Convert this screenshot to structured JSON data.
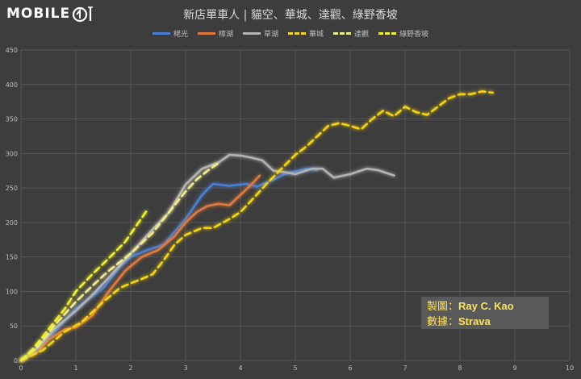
{
  "header": {
    "logo_text": "MOBILE",
    "title": "新店單車人 | 貓空、華城、達觀、綠野香坡"
  },
  "credit": {
    "author_label": "製圖：",
    "author": "Ray C. Kao",
    "source_label": "數據：",
    "source": "Strava"
  },
  "chart_data": {
    "type": "line",
    "title": "新店單車人 | 貓空、華城、達觀、綠野香坡",
    "xlim": [
      0,
      10
    ],
    "ylim": [
      0,
      450
    ],
    "x_ticks": [
      "0",
      "1",
      "2",
      "3",
      "4",
      "5",
      "6",
      "7",
      "8",
      "9",
      "10"
    ],
    "y_ticks": [
      "0",
      "50",
      "100",
      "150",
      "200",
      "250",
      "300",
      "350",
      "400",
      "450"
    ],
    "grid": true,
    "legend_position": "top",
    "series": [
      {
        "name": "栳光",
        "color": "#4a7fd4",
        "dashed": false,
        "x": [
          0,
          0.3,
          0.6,
          1.0,
          1.5,
          1.8,
          2.0,
          2.3,
          2.6,
          3.0,
          3.3,
          3.5,
          3.8,
          4.1,
          4.3,
          4.6,
          4.8,
          5.0,
          5.2,
          5.4
        ],
        "y": [
          0,
          15,
          40,
          75,
          105,
          135,
          150,
          160,
          168,
          205,
          240,
          256,
          253,
          256,
          252,
          262,
          270,
          274,
          278,
          276
        ]
      },
      {
        "name": "樟湖",
        "color": "#e07a3c",
        "dashed": false,
        "x": [
          0,
          0.3,
          0.5,
          0.8,
          1.0,
          1.3,
          1.6,
          1.9,
          2.2,
          2.5,
          2.8,
          3.0,
          3.2,
          3.4,
          3.6,
          3.8,
          4.0,
          4.2,
          4.35
        ],
        "y": [
          0,
          12,
          30,
          45,
          48,
          65,
          100,
          130,
          150,
          160,
          180,
          200,
          215,
          224,
          227,
          225,
          240,
          255,
          268
        ]
      },
      {
        "name": "草湖",
        "color": "#b3b3b3",
        "dashed": false,
        "x": [
          0,
          0.3,
          0.6,
          1.0,
          1.3,
          1.6,
          2.0,
          2.4,
          2.7,
          3.0,
          3.3,
          3.6,
          3.8,
          4.0,
          4.2,
          4.4,
          4.6,
          4.8,
          5.0,
          5.3,
          5.5,
          5.7,
          6.0,
          6.3,
          6.5,
          6.8
        ],
        "y": [
          0,
          18,
          45,
          72,
          95,
          120,
          155,
          190,
          215,
          255,
          278,
          287,
          298,
          297,
          294,
          290,
          275,
          273,
          270,
          278,
          278,
          265,
          270,
          278,
          276,
          268
        ]
      },
      {
        "name": "華城",
        "color": "#f5d410",
        "dashed": true,
        "x": [
          0,
          0.4,
          0.8,
          1.1,
          1.5,
          1.8,
          2.0,
          2.2,
          2.4,
          2.6,
          2.8,
          3.0,
          3.3,
          3.5,
          3.8,
          4.0,
          4.2,
          4.5,
          4.8,
          5.0,
          5.2,
          5.4,
          5.6,
          5.8,
          6.0,
          6.2,
          6.4,
          6.6,
          6.8,
          7.0,
          7.2,
          7.4,
          7.6,
          7.8,
          8.0,
          8.2,
          8.4,
          8.6
        ],
        "y": [
          0,
          15,
          42,
          55,
          85,
          105,
          112,
          118,
          125,
          145,
          168,
          182,
          192,
          192,
          205,
          215,
          232,
          258,
          282,
          298,
          310,
          325,
          340,
          344,
          340,
          335,
          350,
          362,
          354,
          368,
          360,
          356,
          368,
          380,
          386,
          386,
          390,
          388
        ]
      },
      {
        "name": "達觀",
        "color": "#f2ec8a",
        "dashed": true,
        "x": [
          0,
          0.3,
          0.6,
          1.0,
          1.3,
          1.6,
          2.0,
          2.4,
          2.7,
          3.0,
          3.2,
          3.4,
          3.6
        ],
        "y": [
          0,
          20,
          50,
          85,
          108,
          130,
          155,
          185,
          215,
          245,
          262,
          275,
          286
        ]
      },
      {
        "name": "綠野香坡",
        "color": "#f0f025",
        "dashed": true,
        "x": [
          0,
          0.2,
          0.5,
          0.8,
          1.0,
          1.3,
          1.6,
          1.9,
          2.1,
          2.3
        ],
        "y": [
          0,
          15,
          45,
          75,
          100,
          125,
          148,
          172,
          195,
          218
        ]
      }
    ]
  }
}
